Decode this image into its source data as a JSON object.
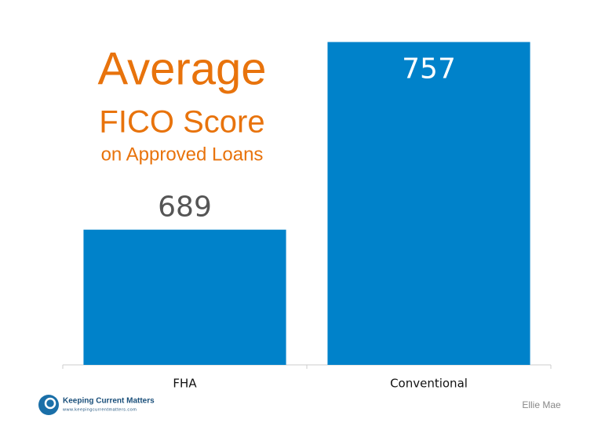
{
  "chart_data": {
    "type": "bar",
    "title_lines": [
      "Average",
      "FICO Score",
      "on Approved Loans"
    ],
    "title_color": "#e8730c",
    "categories": [
      "FHA",
      "Conventional"
    ],
    "values": [
      689,
      757
    ],
    "color": "#0082ca",
    "ylim": [
      640,
      760
    ],
    "source": "Ellie Mae"
  },
  "logo": {
    "name": "Keeping Current Matters",
    "url": "www.keepingcurrentmatters.com"
  }
}
